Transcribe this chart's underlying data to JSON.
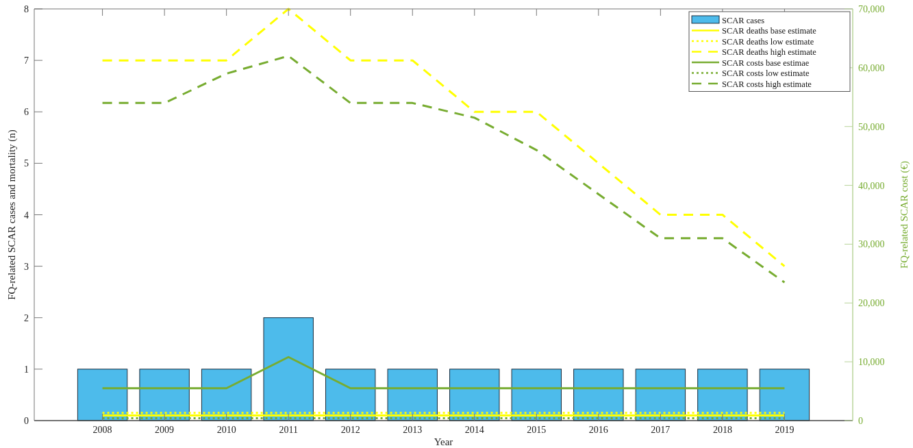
{
  "chart_data": {
    "type": "bar",
    "xlabel": "Year",
    "ylabel": "FQ-related SCAR cases and mortality (n)",
    "y2label": "FQ-related SCAR cost (€)",
    "categories": [
      "2008",
      "2009",
      "2010",
      "2011",
      "2012",
      "2013",
      "2014",
      "2015",
      "2016",
      "2017",
      "2018",
      "2019"
    ],
    "ylim": [
      0,
      8
    ],
    "yticks": [
      0,
      1,
      2,
      3,
      4,
      5,
      6,
      7,
      8
    ],
    "y2lim": [
      0,
      70000
    ],
    "y2ticks": [
      {
        "value": 0,
        "label": "0"
      },
      {
        "value": 10000,
        "label": "10,000"
      },
      {
        "value": 20000,
        "label": "20,000"
      },
      {
        "value": 30000,
        "label": "30,000"
      },
      {
        "value": 40000,
        "label": "40,000"
      },
      {
        "value": 50000,
        "label": "50,000"
      },
      {
        "value": 60000,
        "label": "60,000"
      },
      {
        "value": 70000,
        "label": "70,000"
      }
    ],
    "legend": "top right",
    "grid": false,
    "series": [
      {
        "name": "SCAR cases",
        "color": "#4dbbeb",
        "values": [
          1,
          1,
          1,
          2,
          1,
          1,
          1,
          1,
          1,
          1,
          1,
          1
        ]
      },
      {
        "name": "SCAR deaths base estimate",
        "type": "line",
        "color": "#ffff00",
        "line_style": "solid",
        "values": [
          0.1,
          0.1,
          0.1,
          0.1,
          0.1,
          0.1,
          0.1,
          0.1,
          0.1,
          0.1,
          0.1,
          0.1
        ]
      },
      {
        "name": "SCAR deaths low estimate",
        "type": "line",
        "color": "#ffff00",
        "line_style": "dotted",
        "values": [
          0.15,
          0.15,
          0.15,
          0.15,
          0.15,
          0.15,
          0.15,
          0.15,
          0.15,
          0.15,
          0.15,
          0.15
        ]
      },
      {
        "name": "SCAR deaths high estimate",
        "type": "line",
        "color": "#ffff00",
        "line_style": "dashed",
        "values": [
          7,
          7,
          7,
          8,
          7,
          7,
          6,
          6,
          5,
          4,
          4,
          3
        ]
      },
      {
        "name": "SCAR costs base estimae",
        "type": "line",
        "axis": "y2",
        "color": "#77ac30",
        "line_style": "solid",
        "values": [
          5500,
          5500,
          5500,
          10800,
          5500,
          5500,
          5500,
          5500,
          5500,
          5500,
          5500,
          5500
        ]
      },
      {
        "name": "SCAR costs low estimate",
        "type": "line",
        "axis": "y2",
        "color": "#77ac30",
        "line_style": "dotted",
        "values": [
          400,
          400,
          400,
          400,
          400,
          400,
          400,
          400,
          400,
          400,
          400,
          400
        ]
      },
      {
        "name": "SCAR costs high estimate",
        "type": "line",
        "axis": "y2",
        "color": "#77ac30",
        "line_style": "dashed",
        "values": [
          54000,
          54000,
          59000,
          62000,
          54000,
          54000,
          51500,
          46000,
          38500,
          31000,
          31000,
          23500
        ]
      }
    ]
  }
}
